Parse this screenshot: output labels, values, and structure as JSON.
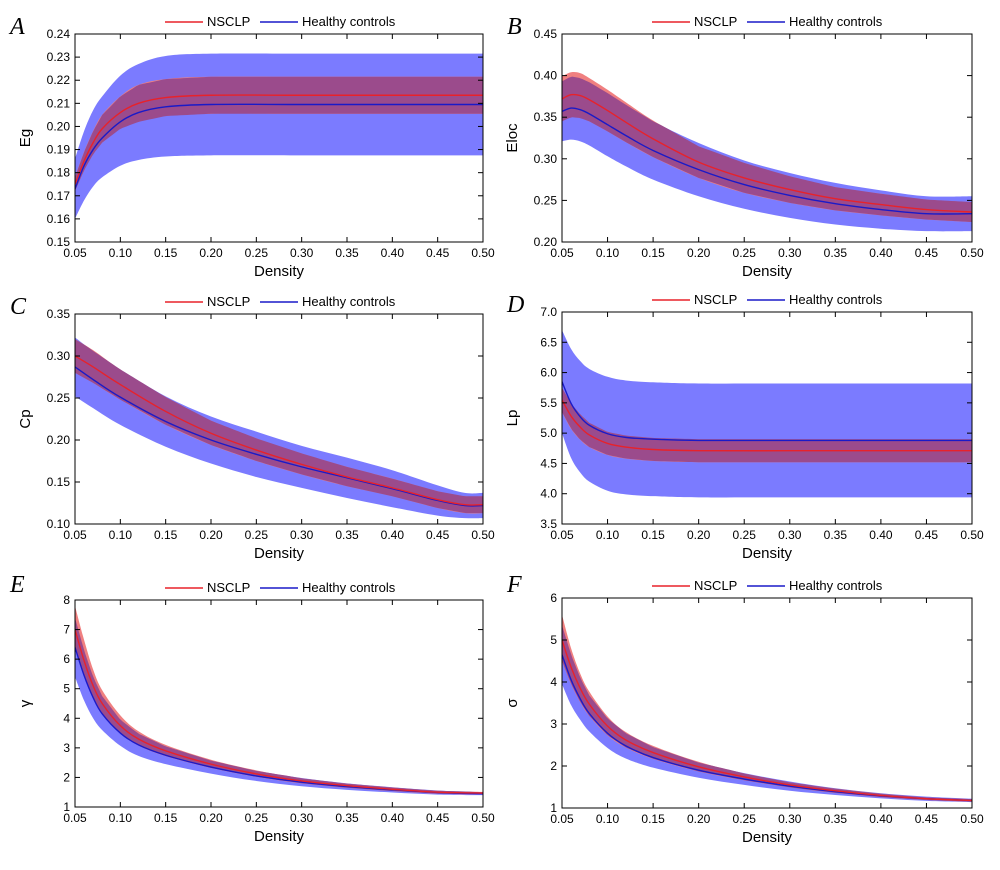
{
  "figure": {
    "legend_labels": [
      "NSCLP",
      "Healthy controls"
    ],
    "colors": {
      "nsclp_line": "#e8222a",
      "control_line": "#1a1ac8",
      "nsclp_band": "#f08080",
      "control_band": "#7b7bff",
      "overlap_band": "#9b4b8c"
    }
  },
  "chart_data": [
    {
      "panel": "A",
      "type": "line",
      "xlabel": "Density",
      "ylabel": "Eg",
      "xlim": [
        0.05,
        0.5
      ],
      "ylim": [
        0.15,
        0.24
      ],
      "xticks": [
        "0.05",
        "0.10",
        "0.15",
        "0.20",
        "0.25",
        "0.30",
        "0.35",
        "0.40",
        "0.45",
        "0.50"
      ],
      "yticks": [
        "0.15",
        "0.16",
        "0.17",
        "0.18",
        "0.19",
        "0.20",
        "0.21",
        "0.22",
        "0.23",
        "0.24"
      ],
      "legend": "top-center",
      "x": [
        0.05,
        0.06,
        0.07,
        0.08,
        0.1,
        0.12,
        0.15,
        0.2,
        0.3,
        0.4,
        0.5
      ],
      "series": [
        {
          "name": "NSCLP",
          "mean": [
            0.175,
            0.185,
            0.193,
            0.199,
            0.206,
            0.21,
            0.2125,
            0.2135,
            0.2135,
            0.2135,
            0.2135
          ],
          "lower": [
            0.172,
            0.181,
            0.188,
            0.193,
            0.199,
            0.202,
            0.2045,
            0.2055,
            0.2055,
            0.2055,
            0.2055
          ],
          "upper": [
            0.178,
            0.189,
            0.198,
            0.205,
            0.213,
            0.218,
            0.2205,
            0.2215,
            0.2215,
            0.2215,
            0.2215
          ]
        },
        {
          "name": "Healthy controls",
          "mean": [
            0.173,
            0.183,
            0.19,
            0.195,
            0.202,
            0.206,
            0.2085,
            0.2095,
            0.2095,
            0.2095,
            0.2095
          ],
          "lower": [
            0.16,
            0.168,
            0.174,
            0.178,
            0.183,
            0.1855,
            0.187,
            0.1875,
            0.1875,
            0.1875,
            0.1875
          ],
          "upper": [
            0.186,
            0.198,
            0.207,
            0.213,
            0.222,
            0.227,
            0.2305,
            0.2315,
            0.2315,
            0.2315,
            0.2315
          ]
        }
      ]
    },
    {
      "panel": "B",
      "type": "line",
      "xlabel": "Density",
      "ylabel": "Eloc",
      "xlim": [
        0.05,
        0.5
      ],
      "ylim": [
        0.2,
        0.45
      ],
      "xticks": [
        "0.05",
        "0.10",
        "0.15",
        "0.20",
        "0.25",
        "0.30",
        "0.35",
        "0.40",
        "0.45",
        "0.50"
      ],
      "yticks": [
        "0.20",
        "0.25",
        "0.30",
        "0.35",
        "0.40",
        "0.45"
      ],
      "legend": "top-center",
      "x": [
        0.05,
        0.06,
        0.07,
        0.08,
        0.1,
        0.12,
        0.15,
        0.2,
        0.25,
        0.3,
        0.35,
        0.4,
        0.45,
        0.5
      ],
      "series": [
        {
          "name": "NSCLP",
          "mean": [
            0.372,
            0.377,
            0.376,
            0.371,
            0.358,
            0.344,
            0.324,
            0.296,
            0.277,
            0.263,
            0.252,
            0.245,
            0.239,
            0.236
          ],
          "lower": [
            0.345,
            0.35,
            0.349,
            0.345,
            0.333,
            0.32,
            0.302,
            0.277,
            0.259,
            0.247,
            0.238,
            0.232,
            0.227,
            0.224
          ],
          "upper": [
            0.399,
            0.404,
            0.403,
            0.397,
            0.383,
            0.368,
            0.346,
            0.315,
            0.295,
            0.279,
            0.266,
            0.258,
            0.251,
            0.248
          ]
        },
        {
          "name": "Healthy controls",
          "mean": [
            0.357,
            0.361,
            0.359,
            0.354,
            0.341,
            0.328,
            0.31,
            0.287,
            0.269,
            0.256,
            0.246,
            0.239,
            0.234,
            0.234
          ],
          "lower": [
            0.321,
            0.323,
            0.321,
            0.316,
            0.303,
            0.291,
            0.275,
            0.255,
            0.24,
            0.229,
            0.221,
            0.216,
            0.213,
            0.213
          ],
          "upper": [
            0.393,
            0.399,
            0.397,
            0.392,
            0.379,
            0.365,
            0.345,
            0.319,
            0.298,
            0.283,
            0.271,
            0.262,
            0.255,
            0.255
          ]
        }
      ]
    },
    {
      "panel": "C",
      "type": "line",
      "xlabel": "Density",
      "ylabel": "Cp",
      "xlim": [
        0.05,
        0.5
      ],
      "ylim": [
        0.1,
        0.35
      ],
      "xticks": [
        "0.05",
        "0.10",
        "0.15",
        "0.20",
        "0.25",
        "0.30",
        "0.35",
        "0.40",
        "0.45",
        "0.50"
      ],
      "yticks": [
        "0.10",
        "0.15",
        "0.20",
        "0.25",
        "0.30",
        "0.35"
      ],
      "legend": "top-center",
      "x": [
        0.05,
        0.07,
        0.1,
        0.15,
        0.2,
        0.25,
        0.3,
        0.35,
        0.4,
        0.45,
        0.48,
        0.5
      ],
      "series": [
        {
          "name": "NSCLP",
          "mean": [
            0.3,
            0.287,
            0.266,
            0.234,
            0.208,
            0.188,
            0.171,
            0.156,
            0.143,
            0.129,
            0.123,
            0.123
          ],
          "lower": [
            0.28,
            0.268,
            0.248,
            0.218,
            0.194,
            0.175,
            0.159,
            0.145,
            0.133,
            0.119,
            0.113,
            0.113
          ],
          "upper": [
            0.32,
            0.307,
            0.284,
            0.251,
            0.223,
            0.202,
            0.184,
            0.168,
            0.154,
            0.139,
            0.133,
            0.133
          ]
        },
        {
          "name": "Healthy controls",
          "mean": [
            0.287,
            0.272,
            0.251,
            0.222,
            0.2,
            0.183,
            0.168,
            0.155,
            0.142,
            0.128,
            0.122,
            0.122
          ],
          "lower": [
            0.252,
            0.238,
            0.218,
            0.192,
            0.172,
            0.156,
            0.143,
            0.131,
            0.12,
            0.11,
            0.107,
            0.107
          ],
          "upper": [
            0.322,
            0.306,
            0.284,
            0.252,
            0.228,
            0.21,
            0.193,
            0.179,
            0.164,
            0.146,
            0.137,
            0.137
          ]
        }
      ]
    },
    {
      "panel": "D",
      "type": "line",
      "xlabel": "Density",
      "ylabel": "Lp",
      "xlim": [
        0.05,
        0.5
      ],
      "ylim": [
        3.5,
        7.0
      ],
      "xticks": [
        "0.05",
        "0.10",
        "0.15",
        "0.20",
        "0.25",
        "0.30",
        "0.35",
        "0.40",
        "0.45",
        "0.50"
      ],
      "yticks": [
        "3.5",
        "4.0",
        "4.5",
        "5.0",
        "5.5",
        "6.0",
        "6.5",
        "7.0"
      ],
      "legend": "top-center",
      "x": [
        0.05,
        0.06,
        0.07,
        0.08,
        0.1,
        0.12,
        0.15,
        0.2,
        0.3,
        0.4,
        0.5
      ],
      "series": [
        {
          "name": "NSCLP",
          "mean": [
            5.55,
            5.28,
            5.1,
            4.97,
            4.83,
            4.77,
            4.73,
            4.71,
            4.71,
            4.71,
            4.71
          ],
          "lower": [
            5.35,
            5.07,
            4.89,
            4.77,
            4.64,
            4.58,
            4.54,
            4.52,
            4.52,
            4.52,
            4.52
          ],
          "upper": [
            5.75,
            5.49,
            5.31,
            5.17,
            5.02,
            4.96,
            4.92,
            4.9,
            4.9,
            4.9,
            4.9
          ]
        },
        {
          "name": "Healthy controls",
          "mean": [
            5.85,
            5.49,
            5.27,
            5.13,
            4.99,
            4.93,
            4.9,
            4.88,
            4.88,
            4.88,
            4.88
          ],
          "lower": [
            5.0,
            4.59,
            4.35,
            4.2,
            4.05,
            3.99,
            3.96,
            3.94,
            3.94,
            3.94,
            3.94
          ],
          "upper": [
            6.7,
            6.39,
            6.19,
            6.06,
            5.93,
            5.87,
            5.84,
            5.82,
            5.82,
            5.82,
            5.82
          ]
        }
      ]
    },
    {
      "panel": "E",
      "type": "line",
      "xlabel": "Density",
      "ylabel": "γ",
      "xlim": [
        0.05,
        0.5
      ],
      "ylim": [
        1,
        8
      ],
      "xticks": [
        "0.05",
        "0.10",
        "0.15",
        "0.20",
        "0.25",
        "0.30",
        "0.35",
        "0.40",
        "0.45",
        "0.50"
      ],
      "yticks": [
        "1",
        "2",
        "3",
        "4",
        "5",
        "6",
        "7",
        "8"
      ],
      "legend": "top-center",
      "x": [
        0.05,
        0.06,
        0.07,
        0.08,
        0.1,
        0.12,
        0.15,
        0.2,
        0.25,
        0.3,
        0.35,
        0.4,
        0.45,
        0.5
      ],
      "series": [
        {
          "name": "NSCLP",
          "mean": [
            7.0,
            5.95,
            5.1,
            4.5,
            3.75,
            3.3,
            2.9,
            2.45,
            2.12,
            1.88,
            1.72,
            1.6,
            1.5,
            1.47
          ],
          "lower": [
            6.4,
            5.45,
            4.7,
            4.15,
            3.5,
            3.08,
            2.72,
            2.32,
            2.02,
            1.8,
            1.65,
            1.54,
            1.45,
            1.43
          ],
          "upper": [
            7.8,
            6.65,
            5.65,
            4.95,
            4.1,
            3.56,
            3.1,
            2.6,
            2.24,
            1.97,
            1.79,
            1.66,
            1.55,
            1.51
          ]
        },
        {
          "name": "Healthy controls",
          "mean": [
            6.4,
            5.45,
            4.7,
            4.15,
            3.5,
            3.1,
            2.75,
            2.35,
            2.05,
            1.84,
            1.69,
            1.58,
            1.49,
            1.45
          ],
          "lower": [
            5.4,
            4.6,
            4.0,
            3.6,
            3.07,
            2.73,
            2.45,
            2.13,
            1.88,
            1.7,
            1.58,
            1.49,
            1.42,
            1.4
          ],
          "upper": [
            7.4,
            6.3,
            5.4,
            4.75,
            3.95,
            3.48,
            3.05,
            2.57,
            2.22,
            1.98,
            1.8,
            1.67,
            1.56,
            1.5
          ]
        }
      ]
    },
    {
      "panel": "F",
      "type": "line",
      "xlabel": "Density",
      "ylabel": "σ",
      "xlim": [
        0.05,
        0.5
      ],
      "ylim": [
        1,
        6
      ],
      "xticks": [
        "0.05",
        "0.10",
        "0.15",
        "0.20",
        "0.25",
        "0.30",
        "0.35",
        "0.40",
        "0.45",
        "0.50"
      ],
      "yticks": [
        "1",
        "2",
        "3",
        "4",
        "5",
        "6"
      ],
      "legend": "top-center",
      "x": [
        0.05,
        0.06,
        0.07,
        0.08,
        0.1,
        0.12,
        0.15,
        0.2,
        0.25,
        0.3,
        0.35,
        0.4,
        0.45,
        0.5
      ],
      "series": [
        {
          "name": "NSCLP",
          "mean": [
            5.0,
            4.35,
            3.85,
            3.47,
            2.95,
            2.62,
            2.32,
            1.98,
            1.74,
            1.55,
            1.41,
            1.3,
            1.22,
            1.18
          ],
          "lower": [
            4.5,
            3.95,
            3.52,
            3.19,
            2.73,
            2.44,
            2.17,
            1.87,
            1.66,
            1.49,
            1.36,
            1.26,
            1.19,
            1.15
          ],
          "upper": [
            5.6,
            4.8,
            4.2,
            3.77,
            3.18,
            2.81,
            2.48,
            2.1,
            1.82,
            1.61,
            1.46,
            1.34,
            1.25,
            1.21
          ]
        },
        {
          "name": "Healthy controls",
          "mean": [
            4.65,
            4.05,
            3.6,
            3.25,
            2.78,
            2.48,
            2.2,
            1.9,
            1.69,
            1.52,
            1.39,
            1.29,
            1.22,
            1.18
          ],
          "lower": [
            3.95,
            3.45,
            3.1,
            2.82,
            2.43,
            2.18,
            1.96,
            1.72,
            1.55,
            1.41,
            1.31,
            1.23,
            1.17,
            1.14
          ],
          "upper": [
            5.35,
            4.65,
            4.1,
            3.68,
            3.13,
            2.78,
            2.45,
            2.08,
            1.83,
            1.63,
            1.47,
            1.35,
            1.27,
            1.22
          ]
        }
      ]
    }
  ]
}
